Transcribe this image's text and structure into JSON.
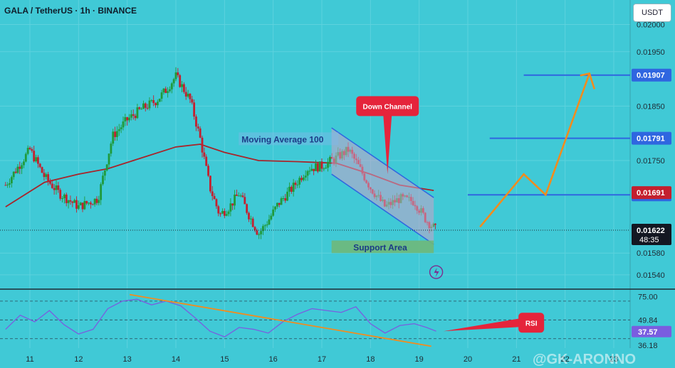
{
  "header": {
    "title": "GALA / TetherUS · 1h · BINANCE",
    "currency_button": "USDT"
  },
  "colors": {
    "background": "#40c9d6",
    "candle_up": "#1f9a3a",
    "candle_down": "#c41f2e",
    "ma100": "#a8242a",
    "channel_fill": "#c9a3c9",
    "channel_border": "#2f66e0",
    "resistance_line": "#2f66e0",
    "projection": "#f28c1e",
    "rsi_line": "#7a5de0",
    "support_area": "#6fb87a",
    "label_red": "#e5243b"
  },
  "chart_data": [
    {
      "type": "candlestick",
      "title": "GALA / TetherUS · 1h · BINANCE",
      "x_tick_labels": [
        "11",
        "12",
        "13",
        "14",
        "15",
        "16",
        "17",
        "18",
        "19",
        "20",
        "21",
        "22",
        "23"
      ],
      "y_tick_labels": [
        "0.02000",
        "0.01950",
        "0.01850",
        "0.01750",
        "0.01580",
        "0.01540"
      ],
      "ylim": [
        0.01515,
        0.02045
      ],
      "price_path_approx": [
        [
          10.5,
          0.01705
        ],
        [
          11.0,
          0.0177
        ],
        [
          11.3,
          0.0172
        ],
        [
          11.6,
          0.0169
        ],
        [
          12.0,
          0.01665
        ],
        [
          12.4,
          0.0168
        ],
        [
          12.7,
          0.01795
        ],
        [
          13.0,
          0.01825
        ],
        [
          13.3,
          0.01845
        ],
        [
          13.6,
          0.0186
        ],
        [
          13.8,
          0.0188
        ],
        [
          14.0,
          0.01905
        ],
        [
          14.3,
          0.0186
        ],
        [
          14.5,
          0.0179
        ],
        [
          14.7,
          0.017
        ],
        [
          14.9,
          0.0165
        ],
        [
          15.1,
          0.01665
        ],
        [
          15.3,
          0.0169
        ],
        [
          15.5,
          0.0165
        ],
        [
          15.7,
          0.01615
        ],
        [
          15.9,
          0.0164
        ],
        [
          16.1,
          0.0167
        ],
        [
          16.4,
          0.017
        ],
        [
          16.7,
          0.01735
        ],
        [
          17.0,
          0.0174
        ],
        [
          17.3,
          0.01755
        ],
        [
          17.55,
          0.0177
        ],
        [
          17.75,
          0.0174
        ],
        [
          18.0,
          0.017
        ],
        [
          18.3,
          0.01665
        ],
        [
          18.6,
          0.0168
        ],
        [
          18.9,
          0.01675
        ],
        [
          19.15,
          0.0164
        ],
        [
          19.35,
          0.01622
        ]
      ],
      "moving_average_100": [
        [
          10.5,
          0.01665
        ],
        [
          11.3,
          0.0171
        ],
        [
          12.0,
          0.01725
        ],
        [
          12.6,
          0.01735
        ],
        [
          13.3,
          0.01755
        ],
        [
          14.0,
          0.01775
        ],
        [
          14.5,
          0.0178
        ],
        [
          15.0,
          0.01765
        ],
        [
          15.7,
          0.0175
        ],
        [
          16.5,
          0.01748
        ],
        [
          17.3,
          0.01745
        ],
        [
          18.0,
          0.01725
        ],
        [
          18.6,
          0.01705
        ],
        [
          19.3,
          0.01695
        ]
      ],
      "horizontal_levels": [
        {
          "price": 0.01907,
          "label": "0.01907",
          "x_start": 21.15
        },
        {
          "price": 0.01791,
          "label": "0.01791",
          "x_start": 20.45
        },
        {
          "price": 0.01687,
          "label": "0.01687",
          "x_start": 20.0
        }
      ],
      "price_badges": [
        {
          "label": "0.01691",
          "price": 0.01691,
          "color": "#c41f2e"
        },
        {
          "label": "0.01622",
          "sub_label": "48:35",
          "price": 0.01622,
          "color": "#131722"
        }
      ],
      "current_price": 0.01622,
      "down_channel": {
        "upper": [
          [
            17.2,
            0.0181
          ],
          [
            19.3,
            0.01682
          ]
        ],
        "lower": [
          [
            17.2,
            0.01725
          ],
          [
            19.3,
            0.01596
          ]
        ]
      },
      "projection_path": [
        [
          20.25,
          0.01628
        ],
        [
          21.15,
          0.01725
        ],
        [
          21.6,
          0.01687
        ],
        [
          22.5,
          0.0191
        ]
      ],
      "annotations": [
        {
          "text": "Moving Average 100",
          "x": 15.35,
          "price": 0.0179
        },
        {
          "text": "Down Channel",
          "x": 18.35,
          "price": 0.0185,
          "points_to": [
            18.35,
            0.01725
          ]
        },
        {
          "text": "Support Area",
          "x": 18.2,
          "price": 0.0159
        }
      ],
      "support_area": {
        "x": [
          17.2,
          19.3
        ],
        "price": [
          0.0158,
          0.01603
        ]
      }
    },
    {
      "type": "line",
      "title": "RSI",
      "y_tick_labels": [
        "75.00",
        "49.84",
        "37.57",
        "36.18"
      ],
      "ylim": [
        20,
        82
      ],
      "reference_levels": [
        70,
        50,
        30
      ],
      "current_value": 37.57,
      "series": [
        {
          "values": [
            [
              10.5,
              40
            ],
            [
              10.8,
              55
            ],
            [
              11.1,
              48
            ],
            [
              11.4,
              60
            ],
            [
              11.7,
              45
            ],
            [
              12.0,
              35
            ],
            [
              12.3,
              40
            ],
            [
              12.6,
              62
            ],
            [
              12.9,
              70
            ],
            [
              13.2,
              72
            ],
            [
              13.5,
              66
            ],
            [
              13.8,
              70
            ],
            [
              14.1,
              65
            ],
            [
              14.4,
              52
            ],
            [
              14.7,
              38
            ],
            [
              15.0,
              32
            ],
            [
              15.3,
              42
            ],
            [
              15.6,
              40
            ],
            [
              15.9,
              36
            ],
            [
              16.2,
              48
            ],
            [
              16.5,
              56
            ],
            [
              16.8,
              62
            ],
            [
              17.1,
              60
            ],
            [
              17.4,
              58
            ],
            [
              17.7,
              64
            ],
            [
              18.0,
              46
            ],
            [
              18.3,
              36
            ],
            [
              18.6,
              44
            ],
            [
              18.9,
              46
            ],
            [
              19.15,
              42
            ],
            [
              19.35,
              38
            ]
          ]
        }
      ],
      "trendline": [
        [
          13.05,
          77
        ],
        [
          19.25,
          22
        ]
      ],
      "label_arrow": {
        "text": "RSI",
        "from": [
          19.5,
          38
        ],
        "to": [
          21.1,
          47
        ]
      }
    }
  ],
  "watermark": "@GK-ARONNO"
}
